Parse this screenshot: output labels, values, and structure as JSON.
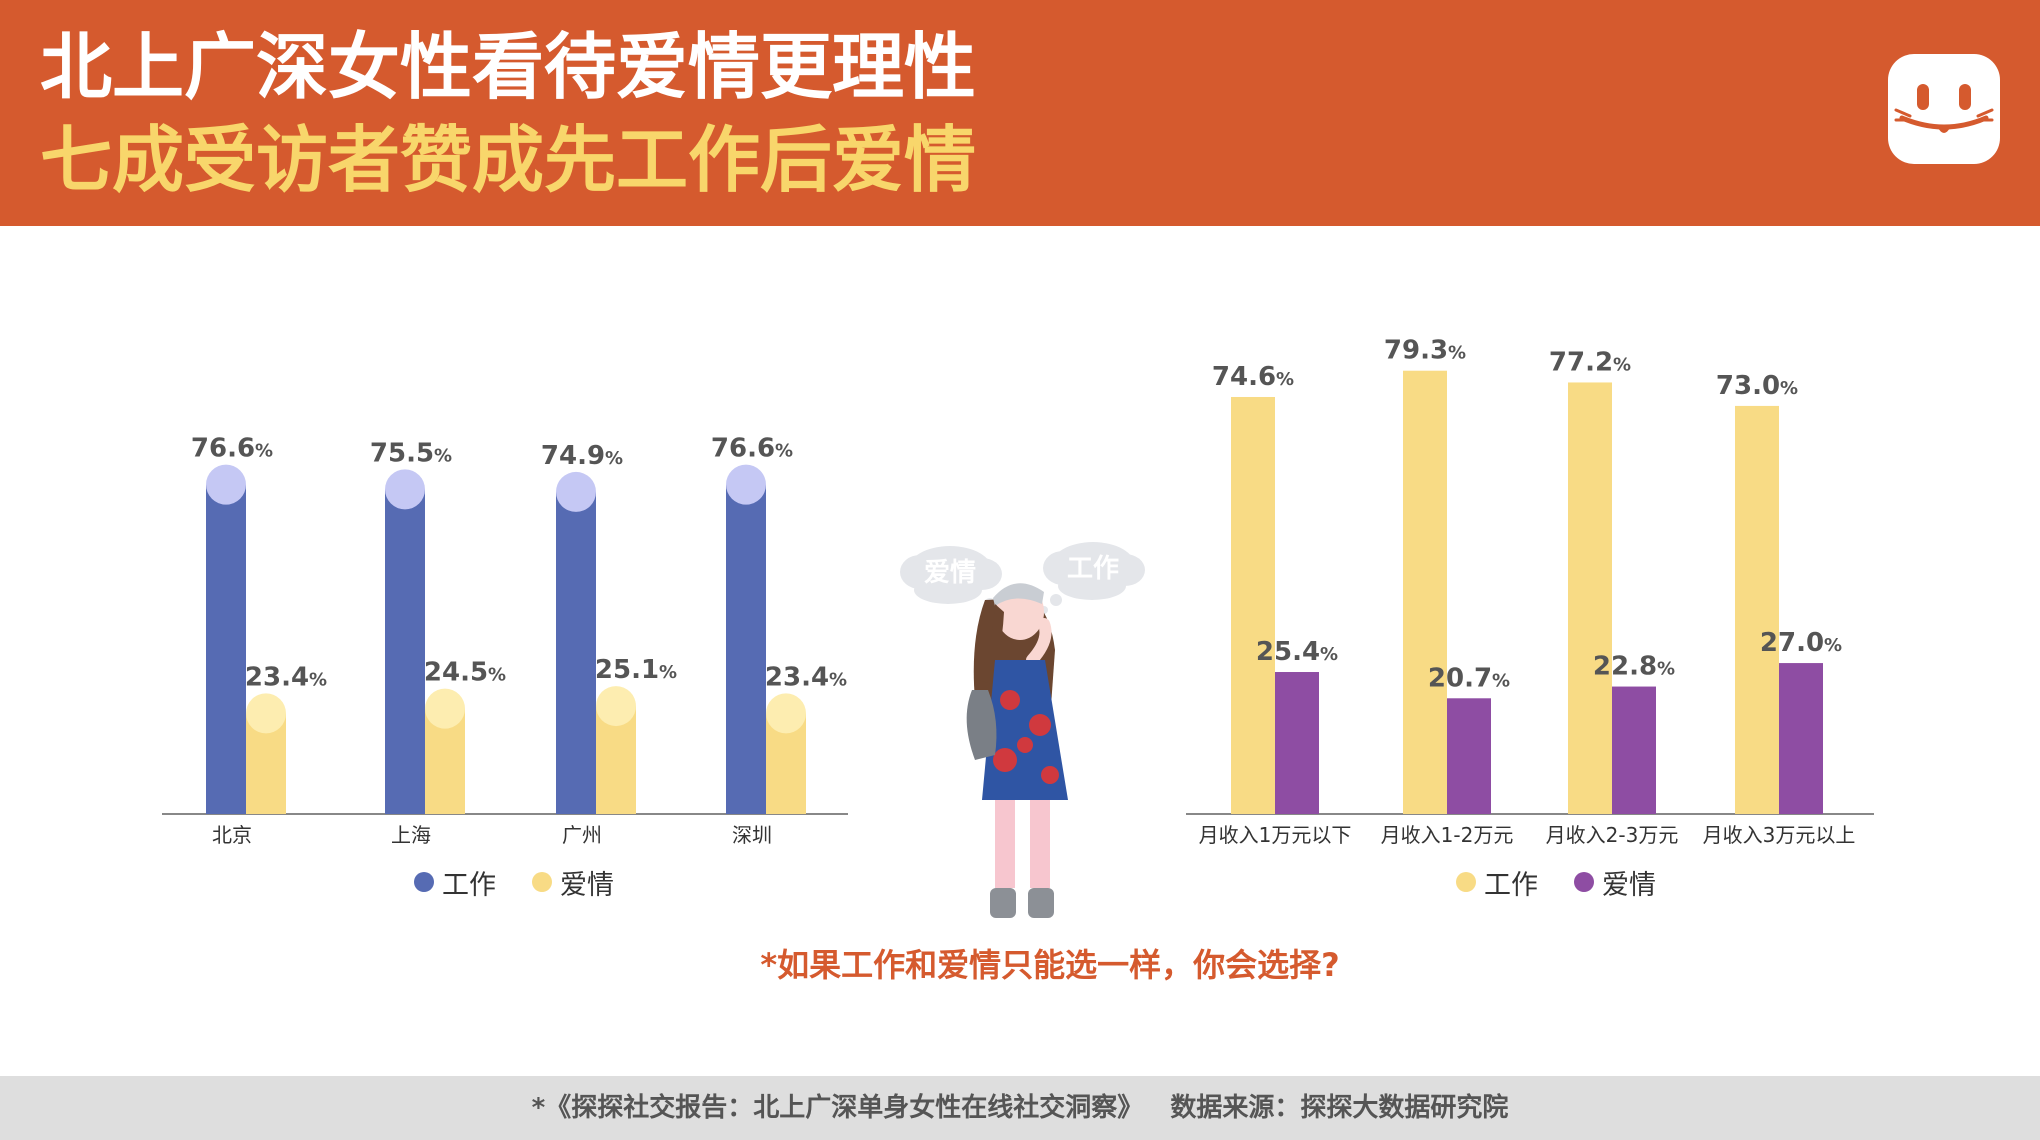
{
  "header": {
    "title_line1": "北上广深女性看待爱情更理性",
    "title_line2": "七成受访者赞成先工作后爱情"
  },
  "colors": {
    "header_bg": "#D55A2E",
    "title_yellow": "#F8D66B",
    "work_blue": "#566BB3",
    "work_cap": "#C5C8F4",
    "love_yellow": "#F8DB85",
    "love_cap": "#FDEDB0",
    "purple": "#8E4DA3",
    "income_work": "#F8DB85"
  },
  "illustration": {
    "bubble_left": "爱情",
    "bubble_right": "工作"
  },
  "question": "*如果工作和爱情只能选一样，你会选择?",
  "footer": "*《探探社交报告：北上广深单身女性在线社交洞察》   数据来源：探探大数据研究院",
  "chart_data": [
    {
      "type": "bar",
      "categories": [
        "北京",
        "上海",
        "广州",
        "深圳"
      ],
      "series": [
        {
          "name": "工作",
          "values": [
            76.6,
            75.5,
            74.9,
            76.6
          ],
          "labels": [
            "76.6",
            "75.5",
            "74.9",
            "76.6"
          ]
        },
        {
          "name": "爱情",
          "values": [
            23.4,
            24.5,
            25.1,
            23.4
          ],
          "labels": [
            "23.4",
            "24.5",
            "25.1",
            "23.4"
          ]
        }
      ],
      "unit": "%",
      "legend": "bottom",
      "grid": false
    },
    {
      "type": "bar",
      "categories": [
        "月收入1万元以下",
        "月收入1-2万元",
        "月收入2-3万元",
        "月收入3万元以上"
      ],
      "series": [
        {
          "name": "工作",
          "values": [
            74.6,
            79.3,
            77.2,
            73.0
          ],
          "labels": [
            "74.6",
            "79.3",
            "77.2",
            "73.0"
          ]
        },
        {
          "name": "爱情",
          "values": [
            25.4,
            20.7,
            22.8,
            27.0
          ],
          "labels": [
            "25.4",
            "20.7",
            "22.8",
            "27.0"
          ]
        }
      ],
      "unit": "%",
      "legend": "bottom",
      "grid": false
    }
  ]
}
